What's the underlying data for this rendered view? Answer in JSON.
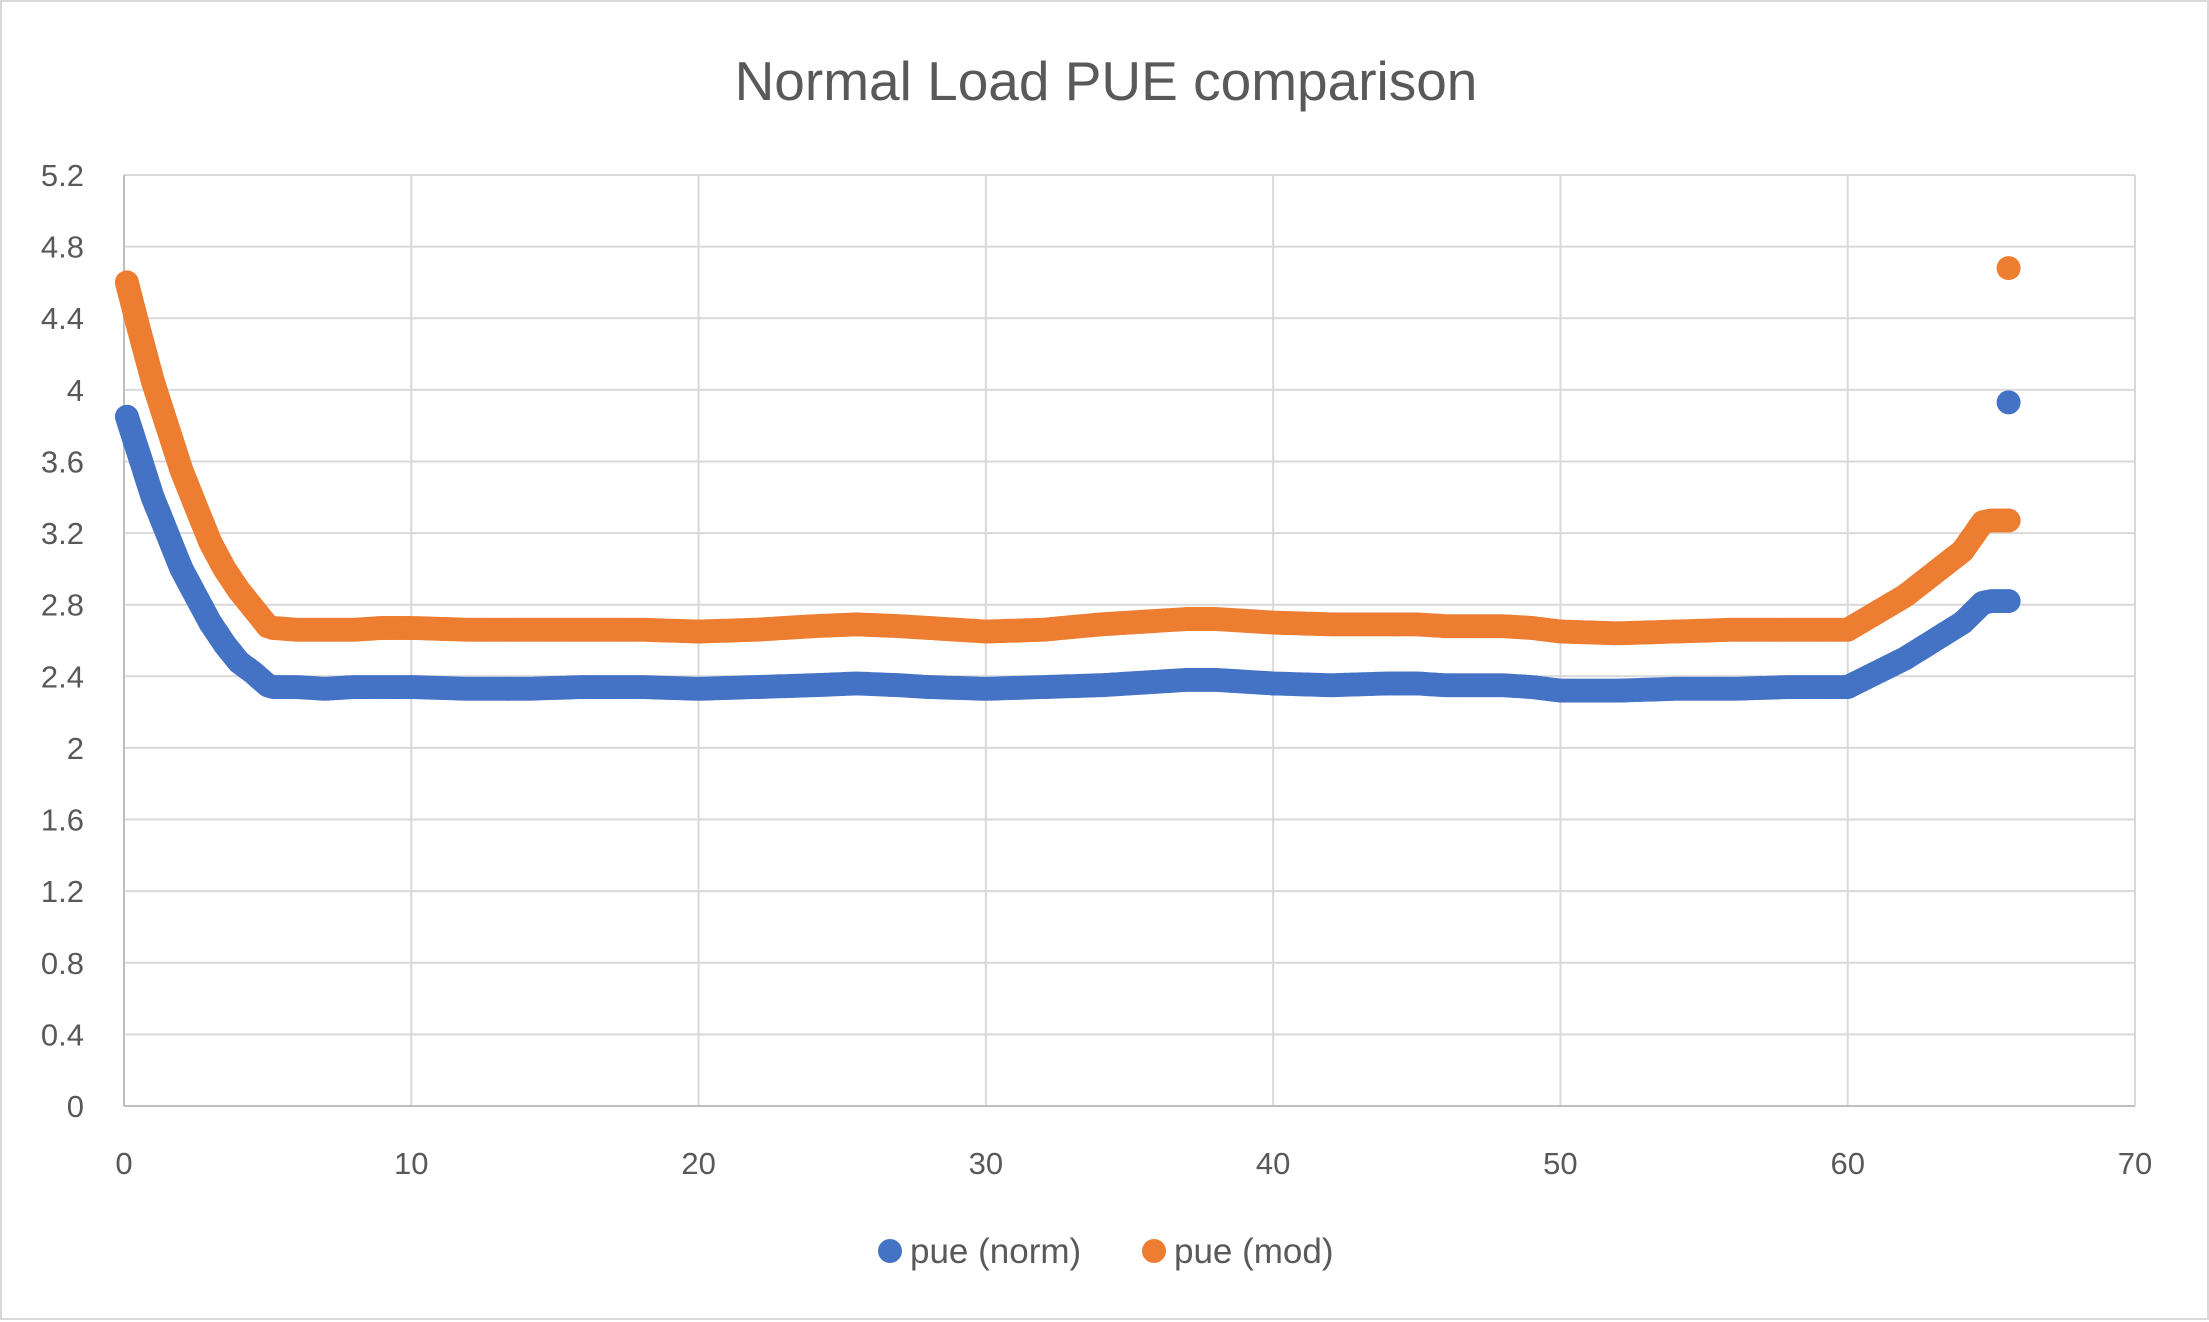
{
  "chart_data": {
    "type": "scatter",
    "title": "Normal Load PUE comparison",
    "xlabel": "",
    "ylabel": "",
    "xlim": [
      0,
      70
    ],
    "ylim": [
      0,
      5.2
    ],
    "x_ticks": [
      0,
      10,
      20,
      30,
      40,
      50,
      60,
      70
    ],
    "x_tick_labels": [
      "0",
      "10",
      "20",
      "30",
      "40",
      "50",
      "60",
      "70"
    ],
    "y_ticks": [
      0,
      0.4,
      0.8,
      1.2,
      1.6,
      2,
      2.4,
      2.8,
      3.2,
      3.6,
      4,
      4.4,
      4.8,
      5.2
    ],
    "y_tick_labels": [
      "0",
      "0.4",
      "0.8",
      "1.2",
      "1.6",
      "2",
      "2.4",
      "2.8",
      "3.2",
      "3.6",
      "4",
      "4.4",
      "4.8",
      "5.2"
    ],
    "grid": true,
    "legend_position": "bottom",
    "series": [
      {
        "name": "pue (norm)",
        "color": "#4472c4",
        "x": [
          0.1,
          0.5,
          1,
          1.5,
          2,
          2.5,
          3,
          3.5,
          4,
          4.5,
          5,
          5.2,
          6,
          7,
          8,
          9,
          10,
          12,
          14,
          16,
          18,
          20,
          22,
          24,
          25.5,
          27,
          28,
          30,
          32,
          34,
          35,
          36,
          37,
          38,
          39,
          40,
          42,
          44,
          45,
          46,
          48,
          49,
          50,
          52,
          54,
          56,
          58,
          60,
          62,
          64,
          64.7,
          65,
          65.3,
          65.6
        ],
        "y": [
          3.85,
          3.65,
          3.4,
          3.2,
          3.0,
          2.85,
          2.7,
          2.58,
          2.48,
          2.42,
          2.35,
          2.34,
          2.34,
          2.33,
          2.34,
          2.34,
          2.34,
          2.33,
          2.33,
          2.34,
          2.34,
          2.33,
          2.34,
          2.35,
          2.36,
          2.35,
          2.34,
          2.33,
          2.34,
          2.35,
          2.36,
          2.37,
          2.38,
          2.38,
          2.37,
          2.36,
          2.35,
          2.36,
          2.36,
          2.35,
          2.35,
          2.34,
          2.32,
          2.32,
          2.33,
          2.33,
          2.34,
          2.34,
          2.5,
          2.7,
          2.81,
          2.82,
          2.82,
          2.82
        ]
      },
      {
        "name": "pue (mod)",
        "color": "#ed7d31",
        "x": [
          0.1,
          0.5,
          1,
          1.5,
          2,
          2.5,
          3,
          3.5,
          4,
          4.5,
          5,
          5.2,
          6,
          7,
          8,
          9,
          10,
          12,
          14,
          16,
          18,
          20,
          22,
          24,
          25.5,
          27,
          28,
          30,
          32,
          34,
          35,
          36,
          37,
          38,
          39,
          40,
          42,
          44,
          45,
          46,
          48,
          49,
          50,
          52,
          54,
          56,
          58,
          60,
          62,
          64,
          64.7,
          65,
          65.3,
          65.6
        ],
        "y": [
          4.6,
          4.35,
          4.05,
          3.8,
          3.55,
          3.35,
          3.15,
          3.0,
          2.88,
          2.78,
          2.68,
          2.67,
          2.66,
          2.66,
          2.66,
          2.67,
          2.67,
          2.66,
          2.66,
          2.66,
          2.66,
          2.65,
          2.66,
          2.68,
          2.69,
          2.68,
          2.67,
          2.65,
          2.66,
          2.69,
          2.7,
          2.71,
          2.72,
          2.72,
          2.71,
          2.7,
          2.69,
          2.69,
          2.69,
          2.68,
          2.68,
          2.67,
          2.65,
          2.64,
          2.65,
          2.66,
          2.66,
          2.66,
          2.85,
          3.1,
          3.26,
          3.27,
          3.27,
          3.27
        ]
      }
    ],
    "outliers": [
      {
        "series": "pue (mod)",
        "x": 65.6,
        "y": 4.68
      },
      {
        "series": "pue (norm)",
        "x": 65.6,
        "y": 3.93
      }
    ]
  }
}
